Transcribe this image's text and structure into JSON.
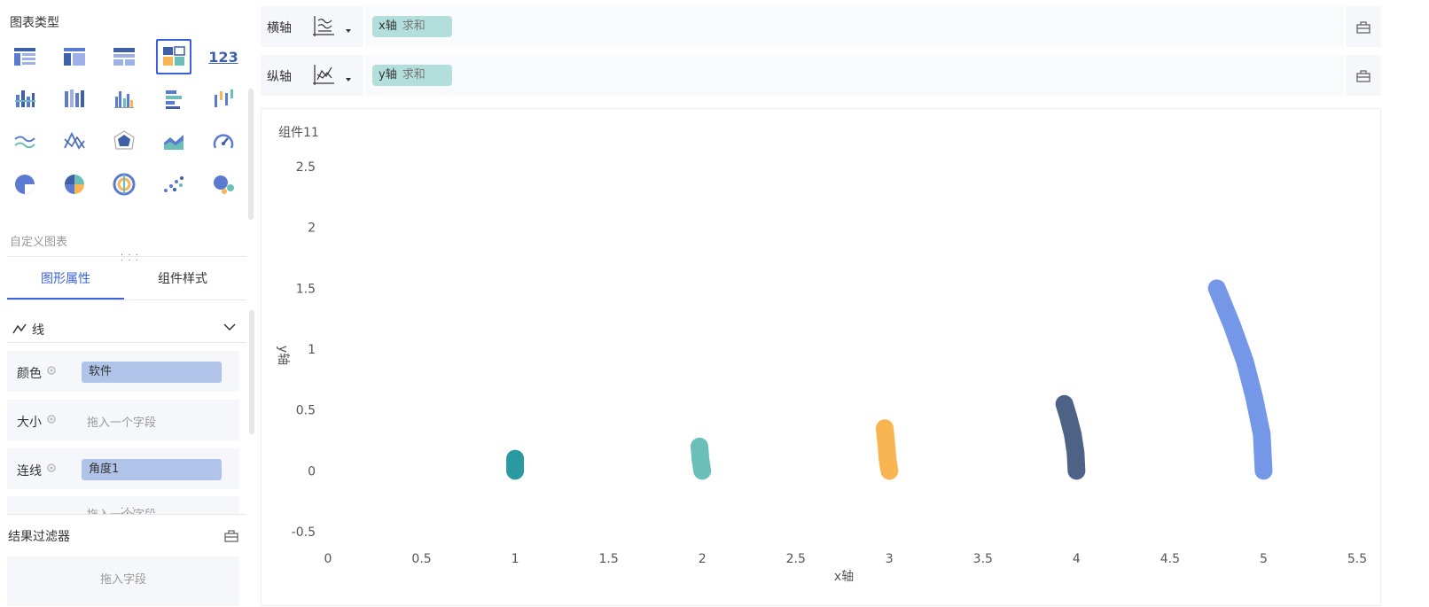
{
  "left_panel": {
    "chart_types_title": "图表类型",
    "custom_chart_label": "自定义图表",
    "number_chart_glyph": "123",
    "tabs": [
      {
        "label": "图形属性",
        "active": true
      },
      {
        "label": "组件样式",
        "active": false
      }
    ],
    "mark_type": {
      "label": "线",
      "icon": "line-mark-icon"
    },
    "properties": [
      {
        "label": "颜色",
        "field": "软件",
        "placeholder": ""
      },
      {
        "label": "大小",
        "field": "",
        "placeholder": "拖入一个字段"
      },
      {
        "label": "连线",
        "field": "角度1",
        "placeholder": ""
      }
    ],
    "partial_row_text": "拖入一个字段",
    "result_filter": {
      "title": "结果过滤器",
      "drop_text": "拖入字段"
    }
  },
  "x_axis_bar": {
    "label": "横轴",
    "field": "x轴",
    "aggregation": "求和"
  },
  "y_axis_bar": {
    "label": "纵轴",
    "field": "y轴",
    "aggregation": "求和"
  },
  "colors": {
    "accent": "#3b62d6",
    "series": [
      "#2b9aa0",
      "#6bbfb8",
      "#f9b551",
      "#4d6284",
      "#7597e8"
    ]
  },
  "chart_data": {
    "type": "line",
    "title": "组件11",
    "xlabel": "x轴",
    "ylabel": "y轴",
    "xlim": [
      0,
      5.5
    ],
    "ylim": [
      -0.5,
      2.5
    ],
    "x_ticks": [
      "0",
      "0.5",
      "1",
      "1.5",
      "2",
      "2.5",
      "3",
      "3.5",
      "4",
      "4.5",
      "5",
      "5.5"
    ],
    "y_ticks": [
      "2.5",
      "2",
      "1.5",
      "1",
      "0.5",
      "0",
      "-0.5"
    ],
    "series": [
      {
        "points": [
          [
            1.0,
            0.0
          ],
          [
            1.0,
            0.1
          ]
        ]
      },
      {
        "points": [
          [
            2.0,
            0.0
          ],
          [
            1.99,
            0.1
          ],
          [
            1.985,
            0.2
          ]
        ]
      },
      {
        "points": [
          [
            3.0,
            0.0
          ],
          [
            2.99,
            0.1
          ],
          [
            2.985,
            0.2
          ],
          [
            2.975,
            0.35
          ]
        ]
      },
      {
        "points": [
          [
            4.0,
            0.0
          ],
          [
            3.995,
            0.15
          ],
          [
            3.98,
            0.3
          ],
          [
            3.955,
            0.45
          ],
          [
            3.935,
            0.55
          ]
        ]
      },
      {
        "points": [
          [
            5.0,
            0.0
          ],
          [
            4.99,
            0.3
          ],
          [
            4.95,
            0.6
          ],
          [
            4.9,
            0.9
          ],
          [
            4.83,
            1.2
          ],
          [
            4.75,
            1.5
          ]
        ]
      }
    ],
    "grid": false,
    "legend": "none"
  }
}
